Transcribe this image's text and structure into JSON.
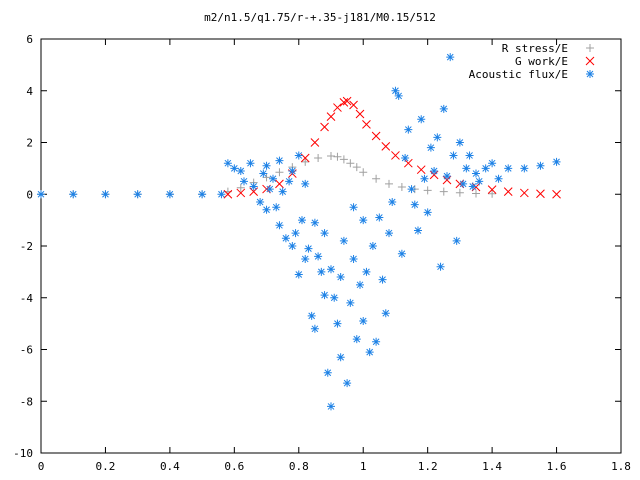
{
  "chart_data": {
    "type": "scatter",
    "title": "m2/n1.5/q1.75/r-+.35-j181/M0.15/512",
    "xlabel": "",
    "ylabel": "",
    "xlim": [
      0,
      1.8
    ],
    "ylim": [
      -10,
      6
    ],
    "xticks": [
      "0",
      "0.2",
      "0.4",
      "0.6",
      "0.8",
      "1",
      "1.2",
      "1.4",
      "1.6",
      "1.8"
    ],
    "yticks": [
      "6",
      "4",
      "2",
      "0",
      "-2",
      "-4",
      "-6",
      "-8",
      "-10"
    ],
    "grid": false,
    "legend_position": "top-right",
    "series": [
      {
        "name": "R stress/E",
        "marker": "plus",
        "color": "#a0a0a0",
        "x": [
          0,
          0.1,
          0.2,
          0.3,
          0.4,
          0.5,
          0.58,
          0.62,
          0.66,
          0.7,
          0.74,
          0.78,
          0.82,
          0.86,
          0.9,
          0.92,
          0.94,
          0.96,
          0.98,
          1.0,
          1.04,
          1.08,
          1.12,
          1.16,
          1.2,
          1.25,
          1.3,
          1.35,
          1.4
        ],
        "y": [
          0,
          0,
          0,
          0,
          0,
          0,
          0.1,
          0.25,
          0.45,
          0.65,
          0.85,
          1.05,
          1.25,
          1.4,
          1.48,
          1.45,
          1.35,
          1.2,
          1.05,
          0.85,
          0.6,
          0.4,
          0.28,
          0.2,
          0.15,
          0.1,
          0.06,
          0.03,
          0.02
        ]
      },
      {
        "name": "G work/E",
        "marker": "cross",
        "color": "#ff0000",
        "x": [
          0.58,
          0.62,
          0.66,
          0.7,
          0.74,
          0.78,
          0.82,
          0.85,
          0.88,
          0.9,
          0.92,
          0.94,
          0.95,
          0.97,
          0.99,
          1.01,
          1.04,
          1.07,
          1.1,
          1.14,
          1.18,
          1.22,
          1.26,
          1.3,
          1.35,
          1.4,
          1.45,
          1.5,
          1.55,
          1.6
        ],
        "y": [
          0,
          0.05,
          0.1,
          0.2,
          0.4,
          0.8,
          1.4,
          2.0,
          2.6,
          3.0,
          3.35,
          3.55,
          3.6,
          3.45,
          3.1,
          2.7,
          2.25,
          1.85,
          1.5,
          1.2,
          0.95,
          0.75,
          0.55,
          0.4,
          0.28,
          0.18,
          0.1,
          0.05,
          0.02,
          0.0
        ]
      },
      {
        "name": "Acoustic flux/E",
        "marker": "star",
        "color": "#1e82e6",
        "x": [
          0,
          0.1,
          0.2,
          0.3,
          0.4,
          0.5,
          0.56,
          0.58,
          0.6,
          0.62,
          0.63,
          0.65,
          0.66,
          0.68,
          0.69,
          0.7,
          0.7,
          0.71,
          0.72,
          0.73,
          0.74,
          0.74,
          0.75,
          0.76,
          0.77,
          0.78,
          0.78,
          0.79,
          0.8,
          0.8,
          0.81,
          0.82,
          0.82,
          0.83,
          0.84,
          0.85,
          0.85,
          0.86,
          0.87,
          0.88,
          0.88,
          0.89,
          0.9,
          0.9,
          0.91,
          0.92,
          0.93,
          0.93,
          0.94,
          0.95,
          0.96,
          0.97,
          0.97,
          0.98,
          0.99,
          1.0,
          1.0,
          1.01,
          1.02,
          1.03,
          1.04,
          1.05,
          1.06,
          1.07,
          1.08,
          1.09,
          1.1,
          1.11,
          1.12,
          1.13,
          1.14,
          1.15,
          1.16,
          1.17,
          1.18,
          1.19,
          1.2,
          1.21,
          1.22,
          1.23,
          1.24,
          1.25,
          1.26,
          1.27,
          1.28,
          1.29,
          1.3,
          1.31,
          1.32,
          1.33,
          1.34,
          1.35,
          1.36,
          1.38,
          1.4,
          1.42,
          1.45,
          1.5,
          1.55,
          1.6
        ],
        "y": [
          0,
          0,
          0,
          0,
          0,
          0,
          0,
          1.2,
          1.0,
          0.9,
          0.5,
          1.2,
          0.3,
          -0.3,
          0.8,
          1.1,
          -0.6,
          0.2,
          0.6,
          -0.5,
          -1.2,
          1.3,
          0.1,
          -1.7,
          0.5,
          -2.0,
          0.9,
          -1.5,
          -3.1,
          1.5,
          -1.0,
          -2.5,
          0.4,
          -2.1,
          -4.7,
          -1.1,
          -5.2,
          -2.4,
          -3.0,
          -3.9,
          -1.5,
          -6.9,
          -2.9,
          -8.2,
          -4.0,
          -5.0,
          -3.2,
          -6.3,
          -1.8,
          -7.3,
          -4.2,
          -2.5,
          -0.5,
          -5.6,
          -3.5,
          -4.9,
          -1.0,
          -3.0,
          -6.1,
          -2.0,
          -5.7,
          -0.9,
          -3.3,
          -4.6,
          -1.5,
          -0.3,
          4.0,
          3.8,
          -2.3,
          1.4,
          2.5,
          0.2,
          -0.4,
          -1.4,
          2.9,
          0.6,
          -0.7,
          1.8,
          0.9,
          2.2,
          -2.8,
          3.3,
          0.7,
          5.3,
          1.5,
          -1.8,
          2.0,
          0.4,
          1.0,
          1.5,
          0.3,
          0.8,
          0.5,
          1.0,
          1.2,
          0.6,
          1.0,
          1.0,
          1.1,
          1.25
        ]
      }
    ]
  },
  "colors": {
    "axis": "#000000",
    "background": "#ffffff"
  }
}
